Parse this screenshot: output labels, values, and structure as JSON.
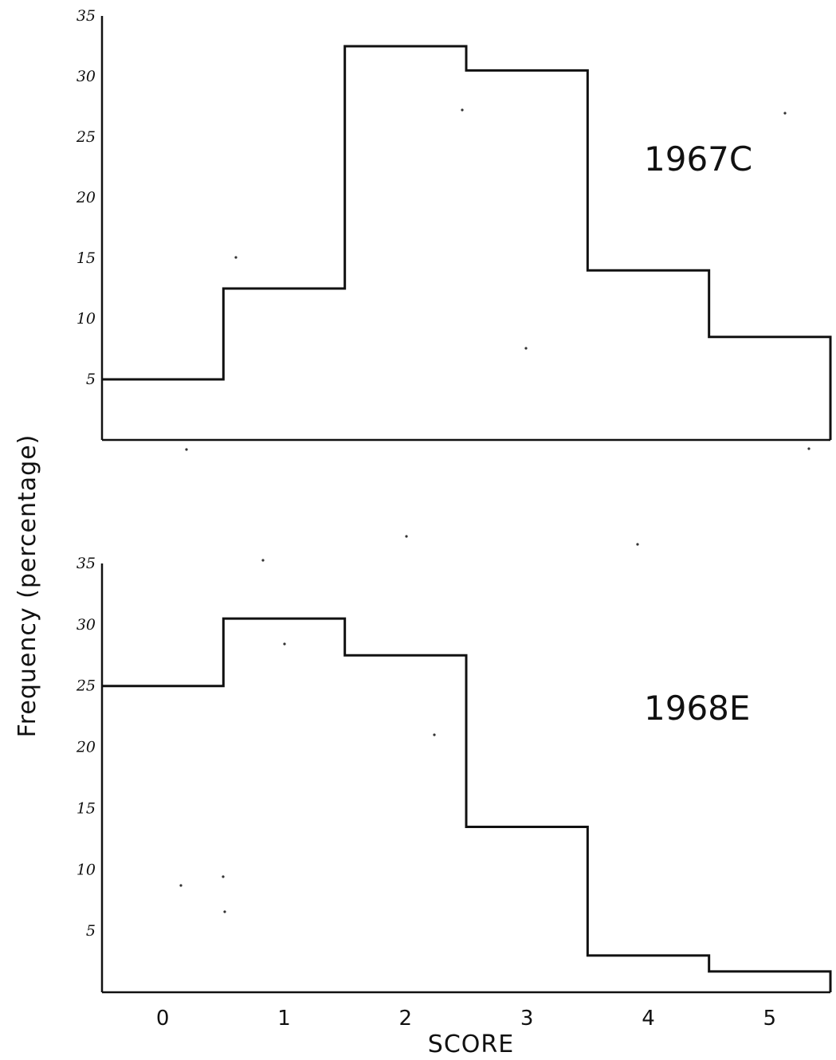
{
  "chart_data": [
    {
      "type": "histogram",
      "title": "1967C",
      "xlabel": "",
      "ylabel": "Frequency (percentage)",
      "ylim": [
        0,
        35
      ],
      "yticks": [
        "5",
        "10",
        "15",
        "20",
        "25",
        "30",
        "35"
      ],
      "xlim": [
        -0.5,
        5.5
      ],
      "categories": [
        "0",
        "1",
        "2",
        "3",
        "4",
        "5"
      ],
      "values": [
        5,
        12.5,
        32.5,
        30.5,
        14,
        8.5
      ]
    },
    {
      "type": "histogram",
      "title": "1968E",
      "xlabel": "SCORE",
      "ylabel": "Frequency (percentage)",
      "ylim": [
        0,
        35
      ],
      "yticks": [
        "5",
        "10",
        "15",
        "20",
        "25",
        "30",
        "35"
      ],
      "xlim": [
        -0.5,
        5.5
      ],
      "categories": [
        "0",
        "1",
        "2",
        "3",
        "4",
        "5"
      ],
      "values": [
        25,
        30.5,
        27.5,
        13.5,
        3,
        1.7
      ]
    }
  ]
}
